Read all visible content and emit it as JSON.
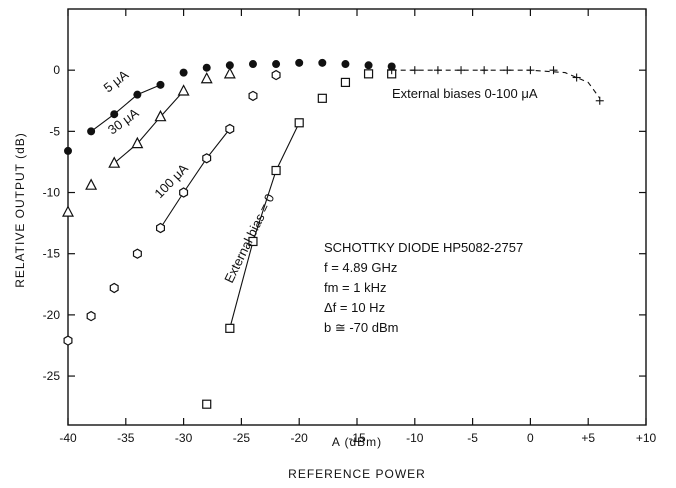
{
  "chart_data": {
    "type": "scatter",
    "title": "",
    "xlabel": "A (dBm)",
    "xlabel_secondary": "REFERENCE POWER",
    "ylabel": "RELATIVE OUTPUT (dB)",
    "xlim": [
      -40,
      10
    ],
    "ylim": [
      -29,
      5
    ],
    "x_ticks": [
      -40,
      -35,
      -30,
      -25,
      -20,
      -15,
      -10,
      -5,
      0,
      5,
      10
    ],
    "x_tick_labels": [
      "-40",
      "-35",
      "-30",
      "-25",
      "-20",
      "-15",
      "-10",
      "-5",
      "0",
      "+5",
      "+10"
    ],
    "y_ticks": [
      0,
      -5,
      -10,
      -15,
      -20,
      -25
    ],
    "y_tick_labels": [
      "0",
      "-5",
      "-10",
      "-15",
      "-20",
      "-25"
    ],
    "grid": false,
    "series": [
      {
        "name": "5 μA",
        "marker": "filled-circle",
        "points": [
          [
            -40,
            -6.6
          ],
          [
            -38,
            -5.0
          ],
          [
            -36,
            -3.6
          ],
          [
            -34,
            -2.0
          ],
          [
            -32,
            -1.2
          ],
          [
            -30,
            -0.2
          ],
          [
            -28,
            0.2
          ],
          [
            -26,
            0.4
          ],
          [
            -24,
            0.5
          ],
          [
            -22,
            0.5
          ],
          [
            -20,
            0.6
          ],
          [
            -18,
            0.6
          ],
          [
            -16,
            0.5
          ],
          [
            -14,
            0.4
          ],
          [
            -12,
            0.3
          ]
        ]
      },
      {
        "name": "30 μA",
        "marker": "triangle",
        "points": [
          [
            -40,
            -11.6
          ],
          [
            -38,
            -9.4
          ],
          [
            -36,
            -7.6
          ],
          [
            -34,
            -6.0
          ],
          [
            -32,
            -3.8
          ],
          [
            -30,
            -1.7
          ],
          [
            -28,
            -0.7
          ],
          [
            -26,
            -0.3
          ]
        ]
      },
      {
        "name": "100 μA",
        "marker": "hexagon",
        "points": [
          [
            -40,
            -22.1
          ],
          [
            -38,
            -20.1
          ],
          [
            -36,
            -17.8
          ],
          [
            -34,
            -15.0
          ],
          [
            -32,
            -12.9
          ],
          [
            -30,
            -10.0
          ],
          [
            -28,
            -7.2
          ],
          [
            -26,
            -4.8
          ],
          [
            -24,
            -2.1
          ],
          [
            -22,
            -0.4
          ]
        ]
      },
      {
        "name": "External bias = 0",
        "marker": "square",
        "points": [
          [
            -28,
            -27.3
          ],
          [
            -26,
            -21.1
          ],
          [
            -24,
            -14.0
          ],
          [
            -22,
            -8.2
          ],
          [
            -20,
            -4.3
          ],
          [
            -18,
            -2.3
          ],
          [
            -16,
            -1.0
          ],
          [
            -14,
            -0.3
          ],
          [
            -12,
            -0.3
          ]
        ]
      },
      {
        "name": "External biases 0-100 μA",
        "marker": "plus",
        "points": [
          [
            -12,
            0
          ],
          [
            -10,
            0
          ],
          [
            -8,
            0
          ],
          [
            -6,
            0
          ],
          [
            -4,
            0
          ],
          [
            -2,
            0
          ],
          [
            0,
            0
          ],
          [
            2,
            0
          ],
          [
            4,
            -0.6
          ],
          [
            6,
            -2.5
          ]
        ]
      }
    ],
    "fit_lines": [
      {
        "name": "5 μA",
        "points": [
          [
            -38,
            -5.0
          ],
          [
            -36,
            -3.6
          ],
          [
            -34,
            -2.0
          ],
          [
            -32,
            -1.2
          ]
        ]
      },
      {
        "name": "30 μA",
        "points": [
          [
            -36,
            -7.6
          ],
          [
            -34,
            -6.0
          ],
          [
            -32,
            -3.8
          ],
          [
            -30,
            -1.7
          ]
        ]
      },
      {
        "name": "100 μA",
        "points": [
          [
            -32,
            -12.9
          ],
          [
            -30,
            -10.0
          ],
          [
            -28,
            -7.2
          ],
          [
            -26,
            -4.8
          ]
        ]
      },
      {
        "name": "External bias = 0",
        "points": [
          [
            -26,
            -21.1
          ],
          [
            -24,
            -14.0
          ],
          [
            -22,
            -8.2
          ],
          [
            -20,
            -4.3
          ]
        ]
      },
      {
        "name": "External biases 0-100 μA",
        "points": [
          [
            -12,
            0
          ],
          [
            0,
            0
          ],
          [
            3,
            -0.2
          ],
          [
            5,
            -1.0
          ],
          [
            6,
            -2.3
          ]
        ],
        "dashed": true
      }
    ],
    "annotations": {
      "label_5ua": "5 μA",
      "label_30ua": "30 μA",
      "label_100ua": "100 μA",
      "label_bias0": "External bias = 0",
      "label_biases": "External biases 0-100 μA",
      "info_lines": [
        "SCHOTTKY DIODE HP5082-2757",
        "f = 4.89 GHz",
        "fm = 1 kHz",
        "Δf = 10 Hz",
        "b ≅ -70 dBm"
      ]
    }
  }
}
